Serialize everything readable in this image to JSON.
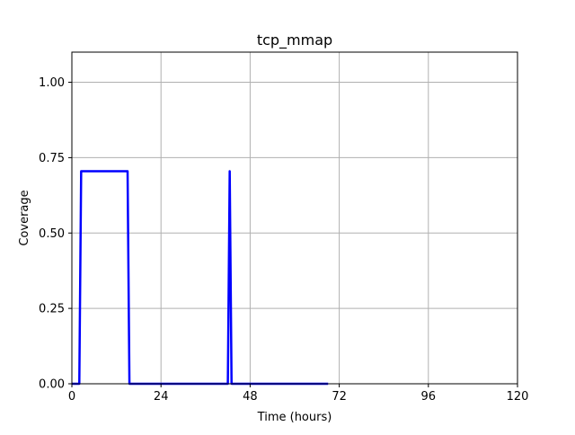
{
  "chart_data": {
    "type": "line",
    "title": "tcp_mmap",
    "xlabel": "Time (hours)",
    "ylabel": "Coverage",
    "xlim": [
      0,
      120
    ],
    "ylim": [
      0,
      1.1
    ],
    "xticks": [
      0,
      24,
      48,
      72,
      96,
      120
    ],
    "xtick_labels": [
      "0",
      "24",
      "48",
      "72",
      "96",
      "120"
    ],
    "yticks": [
      0.0,
      0.25,
      0.5,
      0.75,
      1.0
    ],
    "ytick_labels": [
      "0.00",
      "0.25",
      "0.50",
      "0.75",
      "1.00"
    ],
    "grid": true,
    "series": [
      {
        "color": "#0000ff",
        "x": [
          0,
          2,
          2.5,
          15,
          15.5,
          42,
          42.5,
          43,
          69
        ],
        "y": [
          0,
          0,
          0.705,
          0.705,
          0,
          0,
          0.705,
          0,
          0
        ]
      }
    ]
  }
}
